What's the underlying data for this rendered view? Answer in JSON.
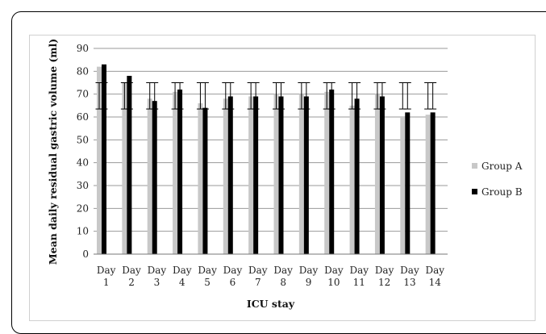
{
  "chart_data": {
    "type": "bar",
    "categories": [
      [
        "Day",
        "1"
      ],
      [
        "Day",
        "2"
      ],
      [
        "Day",
        "3"
      ],
      [
        "Day",
        "4"
      ],
      [
        "Day",
        "5"
      ],
      [
        "Day",
        "6"
      ],
      [
        "Day",
        "7"
      ],
      [
        "Day",
        "8"
      ],
      [
        "Day",
        "9"
      ],
      [
        "Day",
        "10"
      ],
      [
        "Day",
        "11"
      ],
      [
        "Day",
        "12"
      ],
      [
        "Day",
        "13"
      ],
      [
        "Day",
        "14"
      ]
    ],
    "series": [
      {
        "name": "Group A",
        "color": "#c8c8c8",
        "values": [
          82,
          75,
          68,
          71,
          66,
          68,
          69,
          70,
          70,
          71,
          65,
          70,
          60,
          61
        ]
      },
      {
        "name": "Group B",
        "color": "#000000",
        "values": [
          83,
          78,
          67,
          72,
          64,
          69,
          69,
          69,
          69,
          72,
          68,
          69,
          62,
          62
        ]
      }
    ],
    "error_bars": {
      "low": 63.5,
      "high": 75
    },
    "title": "",
    "xlabel": "ICU stay",
    "ylabel": "Mean daily residual gastric volume (ml)",
    "ylim": [
      0,
      90
    ],
    "yticks": [
      "0",
      "10",
      "20",
      "30",
      "40",
      "50",
      "60",
      "70",
      "80",
      "90"
    ],
    "ytick_step": 10,
    "grid": true,
    "legend_position": "right"
  }
}
